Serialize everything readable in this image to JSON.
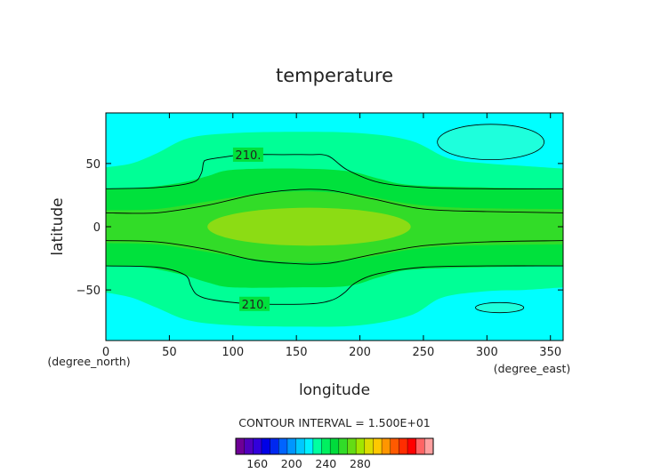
{
  "chart_data": {
    "type": "contour",
    "title": "temperature",
    "xlabel": "longitude",
    "ylabel": "latitude",
    "x_unit": "(degree_east)",
    "y_unit": "(degree_north)",
    "xlim": [
      0,
      360
    ],
    "ylim": [
      -90,
      90
    ],
    "x_ticks": [
      0,
      50,
      100,
      150,
      200,
      250,
      300,
      350
    ],
    "y_ticks": [
      -50,
      0,
      50
    ],
    "contour_interval_text": "CONTOUR INTERVAL = 1.500E+01",
    "contour_labels": [
      {
        "text": "210.",
        "x": 112,
        "y": 57
      },
      {
        "text": "210.",
        "x": 117,
        "y": -61
      }
    ],
    "shaded_regions": [
      {
        "level": "200-210",
        "color": "#00ff96",
        "north_top": [
          [
            0,
            47
          ],
          [
            20,
            50
          ],
          [
            40,
            58
          ],
          [
            65,
            70
          ],
          [
            100,
            74
          ],
          [
            150,
            75
          ],
          [
            200,
            74
          ],
          [
            240,
            68
          ],
          [
            270,
            54
          ],
          [
            300,
            50
          ],
          [
            330,
            48
          ],
          [
            360,
            46
          ]
        ],
        "south_bottom": [
          [
            0,
            -52
          ],
          [
            20,
            -56
          ],
          [
            40,
            -64
          ],
          [
            65,
            -74
          ],
          [
            100,
            -78
          ],
          [
            150,
            -79
          ],
          [
            200,
            -78
          ],
          [
            240,
            -70
          ],
          [
            265,
            -56
          ],
          [
            300,
            -51
          ],
          [
            330,
            -50
          ],
          [
            360,
            -48
          ]
        ]
      },
      {
        "level": "210-225",
        "color": "#00e13c",
        "north_top": [
          [
            0,
            30
          ],
          [
            30,
            31
          ],
          [
            60,
            35
          ],
          [
            80,
            40
          ],
          [
            100,
            45
          ],
          [
            150,
            46
          ],
          [
            190,
            44
          ],
          [
            215,
            38
          ],
          [
            240,
            33
          ],
          [
            300,
            31
          ],
          [
            360,
            30
          ]
        ],
        "south_bottom": [
          [
            0,
            -31
          ],
          [
            30,
            -32
          ],
          [
            60,
            -38
          ],
          [
            80,
            -44
          ],
          [
            100,
            -48
          ],
          [
            150,
            -48
          ],
          [
            190,
            -47
          ],
          [
            215,
            -40
          ],
          [
            240,
            -34
          ],
          [
            300,
            -32
          ],
          [
            360,
            -31
          ]
        ]
      },
      {
        "level": "225-240",
        "color": "#32dc28",
        "north_top": [
          [
            0,
            13
          ],
          [
            40,
            14
          ],
          [
            80,
            20
          ],
          [
            120,
            26
          ],
          [
            160,
            28
          ],
          [
            200,
            25
          ],
          [
            240,
            18
          ],
          [
            280,
            15
          ],
          [
            360,
            14
          ]
        ],
        "south_bottom": [
          [
            0,
            -13
          ],
          [
            40,
            -14
          ],
          [
            80,
            -20
          ],
          [
            120,
            -26
          ],
          [
            160,
            -28
          ],
          [
            200,
            -25
          ],
          [
            240,
            -18
          ],
          [
            280,
            -15
          ],
          [
            360,
            -14
          ]
        ]
      }
    ],
    "core_ellipse": {
      "level": "240-255",
      "color": "#8cdc14",
      "center": [
        160,
        0
      ],
      "radius": [
        80,
        15
      ]
    },
    "cold_cells": [
      {
        "center": [
          303,
          67
        ],
        "radius": [
          42,
          14
        ],
        "color": "#1effdc"
      },
      {
        "center": [
          310,
          -64
        ],
        "radius": [
          19,
          4
        ],
        "color": "#1effdc"
      }
    ],
    "contour_lines": [
      {
        "name": "210-north",
        "points": [
          [
            0,
            30
          ],
          [
            40,
            31
          ],
          [
            68,
            35
          ],
          [
            75,
            42
          ],
          [
            77,
            51
          ],
          [
            80,
            53
          ],
          [
            92,
            55
          ],
          [
            110,
            57
          ],
          [
            140,
            57
          ],
          [
            160,
            57
          ],
          [
            175,
            56
          ],
          [
            190,
            45
          ],
          [
            215,
            35
          ],
          [
            250,
            31
          ],
          [
            300,
            30
          ],
          [
            360,
            30
          ]
        ]
      },
      {
        "name": "210-south",
        "points": [
          [
            0,
            -31
          ],
          [
            40,
            -32
          ],
          [
            62,
            -38
          ],
          [
            67,
            -47
          ],
          [
            72,
            -54
          ],
          [
            85,
            -58
          ],
          [
            115,
            -61
          ],
          [
            160,
            -61
          ],
          [
            178,
            -58
          ],
          [
            188,
            -52
          ],
          [
            197,
            -44
          ],
          [
            215,
            -37
          ],
          [
            250,
            -32
          ],
          [
            300,
            -31
          ],
          [
            360,
            -31
          ]
        ]
      },
      {
        "name": "225-north",
        "points": [
          [
            0,
            11
          ],
          [
            40,
            11
          ],
          [
            80,
            17
          ],
          [
            115,
            25
          ],
          [
            145,
            29
          ],
          [
            175,
            29
          ],
          [
            210,
            22
          ],
          [
            250,
            14
          ],
          [
            300,
            12
          ],
          [
            360,
            11
          ]
        ]
      },
      {
        "name": "225-south",
        "points": [
          [
            0,
            -11
          ],
          [
            40,
            -12
          ],
          [
            80,
            -18
          ],
          [
            115,
            -26
          ],
          [
            145,
            -29
          ],
          [
            175,
            -29
          ],
          [
            210,
            -22
          ],
          [
            250,
            -15
          ],
          [
            300,
            -12
          ],
          [
            360,
            -11
          ]
        ]
      }
    ],
    "colorbar": {
      "colors": [
        "#6e0096",
        "#5000be",
        "#3200dc",
        "#0000e6",
        "#0028f0",
        "#0064ff",
        "#0096ff",
        "#00c8ff",
        "#00f0ff",
        "#00ffa0",
        "#00f060",
        "#00dc3c",
        "#32dc28",
        "#64dc14",
        "#a0e600",
        "#dcdc00",
        "#ffc800",
        "#ff9600",
        "#ff5a00",
        "#ff2d00",
        "#ff0000",
        "#ff6464",
        "#ffa0a0"
      ],
      "tick_labels": [
        "160",
        "200",
        "240",
        "280"
      ],
      "tick_positions": [
        2.5,
        6.5,
        10.5,
        14.5
      ]
    },
    "background_color": "#00ffff"
  }
}
